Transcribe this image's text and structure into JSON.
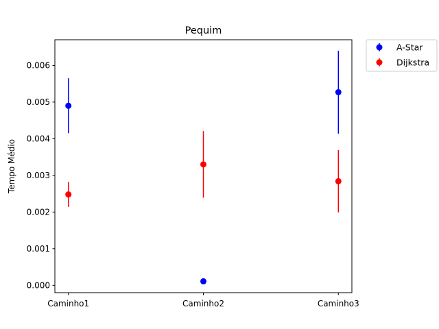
{
  "chart_data": {
    "type": "scatter",
    "title": "Pequim",
    "xlabel": "",
    "ylabel": "Tempo Médio",
    "categories": [
      "Caminho1",
      "Caminho2",
      "Caminho3"
    ],
    "ylim": [
      -0.0002,
      0.0067
    ],
    "yticks": [
      "0.000",
      "0.001",
      "0.002",
      "0.003",
      "0.004",
      "0.005",
      "0.006"
    ],
    "ytick_values": [
      0,
      0.001,
      0.002,
      0.003,
      0.004,
      0.005,
      0.006
    ],
    "legend_position": "outside top-right",
    "grid": false,
    "series": [
      {
        "name": "A-Star",
        "color": "#0000ff",
        "values": [
          0.0049,
          0.00011,
          0.00527
        ],
        "errors": [
          0.00075,
          0.0,
          0.00113
        ]
      },
      {
        "name": "Dijkstra",
        "color": "#ff0000",
        "values": [
          0.00248,
          0.0033,
          0.00284
        ],
        "errors": [
          0.00034,
          0.00091,
          0.00085
        ]
      }
    ]
  }
}
